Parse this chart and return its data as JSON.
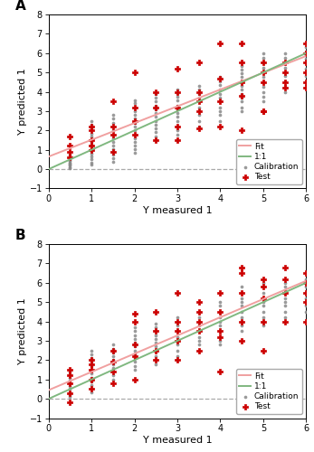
{
  "panel_A": {
    "fit_line": {
      "x": [
        0,
        6
      ],
      "y": [
        0.65,
        5.85
      ]
    },
    "line_11": {
      "x": [
        0,
        6
      ],
      "y": [
        0,
        6
      ]
    },
    "calib_clusters": {
      "0.5": [
        0.05,
        0.12,
        0.18,
        0.22,
        0.28,
        0.35,
        0.42,
        0.48,
        0.55,
        0.62,
        0.68,
        0.75
      ],
      "1.0": [
        0.25,
        0.35,
        0.5,
        0.65,
        0.8,
        0.95,
        1.1,
        1.25,
        1.4,
        1.55,
        1.7,
        1.85,
        2.0,
        2.15,
        2.3,
        2.5
      ],
      "1.5": [
        0.4,
        0.55,
        0.75,
        0.9,
        1.05,
        1.2,
        1.4,
        1.6,
        1.8,
        2.0,
        2.2,
        2.4,
        2.6,
        2.8
      ],
      "2.0": [
        0.85,
        1.05,
        1.2,
        1.4,
        1.6,
        1.8,
        2.0,
        2.2,
        2.4,
        2.6,
        2.8,
        3.0,
        3.2,
        3.4,
        3.55
      ],
      "2.5": [
        1.5,
        1.7,
        1.9,
        2.1,
        2.3,
        2.5,
        2.7,
        2.9,
        3.1,
        3.3,
        3.5,
        3.7,
        3.9
      ],
      "3.0": [
        1.5,
        1.8,
        2.0,
        2.2,
        2.5,
        2.7,
        2.9,
        3.1,
        3.3,
        3.55,
        3.75,
        3.95,
        4.1
      ],
      "3.5": [
        2.2,
        2.5,
        2.8,
        3.0,
        3.2,
        3.5,
        3.7,
        3.9,
        4.1,
        4.3
      ],
      "4.0": [
        2.5,
        2.8,
        3.0,
        3.2,
        3.5,
        3.7,
        3.9,
        4.1,
        4.35,
        4.55,
        4.75
      ],
      "4.5": [
        3.0,
        3.2,
        3.5,
        3.7,
        3.9,
        4.1,
        4.3,
        4.55,
        4.75,
        4.95,
        5.15,
        5.35
      ],
      "5.0": [
        3.5,
        3.75,
        4.0,
        4.25,
        4.5,
        4.75,
        5.0,
        5.25,
        5.5,
        5.75,
        6.0
      ],
      "5.5": [
        4.0,
        4.25,
        4.55,
        4.8,
        5.0,
        5.25,
        5.5,
        5.75,
        6.0
      ],
      "6.0": [
        4.2,
        4.5,
        4.8,
        5.0,
        5.2,
        5.5,
        5.7,
        5.9,
        6.1,
        6.3
      ]
    },
    "test_clusters": {
      "0.5": [
        0.6,
        0.9,
        1.2,
        1.7
      ],
      "1.0": [
        1.0,
        1.2,
        1.5,
        2.0,
        2.2
      ],
      "1.5": [
        0.9,
        1.8,
        2.2,
        3.5
      ],
      "2.0": [
        1.8,
        2.5,
        3.2,
        5.0
      ],
      "2.5": [
        1.5,
        3.2,
        4.0
      ],
      "3.0": [
        1.5,
        2.2,
        3.2,
        4.0,
        5.2
      ],
      "3.5": [
        2.1,
        3.0,
        3.5,
        4.0,
        5.5
      ],
      "4.0": [
        2.2,
        3.5,
        4.7,
        6.5
      ],
      "4.5": [
        2.0,
        3.8,
        4.5,
        5.5,
        6.5
      ],
      "5.0": [
        3.0,
        3.0,
        4.5,
        5.0,
        5.5
      ],
      "5.5": [
        4.2,
        4.5,
        5.0,
        5.5
      ],
      "6.0": [
        4.2,
        4.5,
        5.0,
        5.5,
        6.0,
        6.5
      ]
    }
  },
  "panel_B": {
    "fit_line": {
      "x": [
        0,
        6
      ],
      "y": [
        0.45,
        6.1
      ]
    },
    "line_11": {
      "x": [
        0,
        6
      ],
      "y": [
        0,
        6
      ]
    },
    "calib_clusters": {
      "0.5": [
        0.1,
        0.2,
        0.35,
        0.5,
        0.65,
        0.8,
        0.95,
        1.1,
        1.25,
        1.4
      ],
      "1.0": [
        0.35,
        0.5,
        0.7,
        0.9,
        1.1,
        1.3,
        1.5,
        1.7,
        1.9,
        2.1,
        2.3,
        2.5
      ],
      "1.5": [
        1.0,
        1.2,
        1.4,
        1.6,
        1.8,
        2.0,
        2.2,
        2.4,
        2.6,
        2.8
      ],
      "2.0": [
        1.5,
        1.7,
        1.9,
        2.1,
        2.3,
        2.5,
        2.7,
        2.9,
        3.1,
        3.3,
        3.5,
        3.7
      ],
      "2.5": [
        1.8,
        2.0,
        2.2,
        2.5,
        2.7,
        2.9,
        3.1,
        3.3,
        3.5,
        3.7,
        3.9
      ],
      "3.0": [
        2.0,
        2.2,
        2.5,
        2.8,
        3.0,
        3.2,
        3.5,
        3.8,
        4.0,
        4.2
      ],
      "3.5": [
        2.5,
        2.8,
        3.0,
        3.2,
        3.5,
        3.8,
        4.0,
        4.2,
        4.5
      ],
      "4.0": [
        2.8,
        3.0,
        3.2,
        3.5,
        3.8,
        4.0,
        4.2,
        4.5,
        4.8,
        5.0
      ],
      "4.5": [
        3.5,
        3.8,
        4.0,
        4.2,
        4.5,
        4.8,
        5.0,
        5.2,
        5.5,
        5.8
      ],
      "5.0": [
        3.8,
        4.0,
        4.2,
        4.5,
        4.8,
        5.0,
        5.2,
        5.5,
        5.8,
        6.0
      ],
      "5.5": [
        4.2,
        4.5,
        4.8,
        5.0,
        5.2,
        5.5,
        5.8,
        6.0
      ],
      "6.0": [
        4.5,
        4.8,
        5.0,
        5.2,
        5.5,
        5.8,
        6.0,
        6.2
      ]
    },
    "test_clusters": {
      "0.5": [
        -0.2,
        0.3,
        0.8,
        1.2,
        1.5
      ],
      "1.0": [
        0.5,
        1.0,
        1.5,
        1.8,
        2.0
      ],
      "1.5": [
        0.8,
        1.4,
        1.9,
        2.5
      ],
      "2.0": [
        1.0,
        2.2,
        2.8,
        4.0,
        4.4
      ],
      "2.5": [
        2.0,
        2.5,
        3.5,
        4.5
      ],
      "3.0": [
        2.0,
        3.0,
        3.5,
        4.0,
        5.5
      ],
      "3.5": [
        2.5,
        3.5,
        4.0,
        4.5,
        5.0
      ],
      "4.0": [
        1.4,
        3.2,
        3.5,
        4.5,
        5.5
      ],
      "4.5": [
        3.0,
        4.0,
        5.5,
        6.5,
        6.8
      ],
      "5.0": [
        2.5,
        4.0,
        5.2,
        5.8,
        6.2
      ],
      "5.5": [
        4.0,
        5.5,
        6.2,
        6.8
      ],
      "6.0": [
        4.0,
        5.0,
        5.5,
        6.0,
        6.5
      ]
    }
  },
  "fit_color": "#f0a0a0",
  "line11_color": "#80b880",
  "calib_color": "#888888",
  "test_color": "#cc0000",
  "ref_line_color": "#aaaaaa",
  "xlim": [
    0,
    6
  ],
  "ylim": [
    -1,
    8
  ],
  "xlabel": "Y measured 1",
  "ylabel": "Y predicted 1",
  "xticks": [
    0,
    1,
    2,
    3,
    4,
    5,
    6
  ],
  "yticks": [
    -1,
    0,
    1,
    2,
    3,
    4,
    5,
    6,
    7,
    8
  ]
}
